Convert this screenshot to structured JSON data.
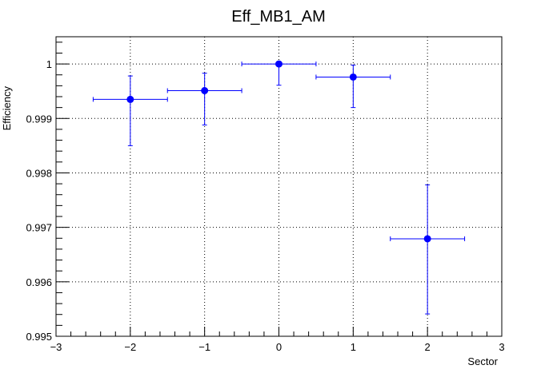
{
  "chart_data": {
    "type": "scatter",
    "title": "Eff_MB1_AM",
    "xlabel": "Sector",
    "ylabel": "Efficiency",
    "xlim": [
      -3,
      3
    ],
    "ylim": [
      0.995,
      1.0005
    ],
    "xticks": [
      -3,
      -2,
      -1,
      0,
      1,
      2,
      3
    ],
    "xtick_labels": [
      "−3",
      "−2",
      "−1",
      "0",
      "1",
      "2",
      "3"
    ],
    "yticks": [
      0.995,
      0.996,
      0.997,
      0.998,
      0.999,
      1.0
    ],
    "ytick_labels": [
      "0.995",
      "0.996",
      "0.997",
      "0.998",
      "0.999",
      "1"
    ],
    "grid": true,
    "marker_color": "#0000ff",
    "points": [
      {
        "x": -2,
        "y": 0.99935,
        "xerr": 0.5,
        "yerr_low": 0.00085,
        "yerr_high": 0.00043
      },
      {
        "x": -1,
        "y": 0.99951,
        "xerr": 0.5,
        "yerr_low": 0.00063,
        "yerr_high": 0.00032
      },
      {
        "x": 0,
        "y": 1.0,
        "xerr": 0.5,
        "yerr_low": 0.00039,
        "yerr_high": 0.0
      },
      {
        "x": 1,
        "y": 0.99976,
        "xerr": 0.5,
        "yerr_low": 0.00056,
        "yerr_high": 0.00022
      },
      {
        "x": 2,
        "y": 0.99679,
        "xerr": 0.5,
        "yerr_low": 0.00138,
        "yerr_high": 0.00099
      }
    ]
  }
}
